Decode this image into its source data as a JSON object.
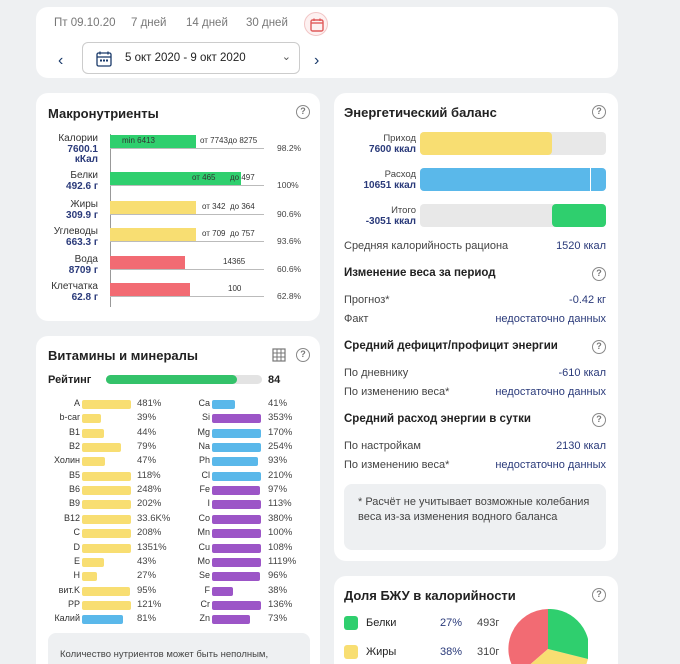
{
  "colors": {
    "green": "#2fcf6e",
    "yellow": "#f8de72",
    "red": "#f26b73",
    "blue": "#5ab8ea",
    "violet": "#9c55c7",
    "navy": "#2a3a7a"
  },
  "top": {
    "ranges": [
      "Пт 09.10.20",
      "7 дней",
      "14 дней",
      "30 дней"
    ],
    "date_range": "5 окт 2020 - 9 окт 2020",
    "prev": "‹",
    "next": "›"
  },
  "macro": {
    "title": "Макронутриенты",
    "rows": [
      {
        "name": "Калории",
        "value": "7600.1",
        "unit": "кКал",
        "pct": "98.2%",
        "ticks": [
          "min 6413",
          "от 7743",
          "до 8275"
        ],
        "fill": 0.56,
        "color": "green"
      },
      {
        "name": "Белки",
        "value": "492.6 г",
        "pct": "100%",
        "ticks": [
          "от 465",
          "до 497"
        ],
        "fill": 0.85,
        "color": "green"
      },
      {
        "name": "Жиры",
        "value": "309.9 г",
        "pct": "90.6%",
        "ticks": [
          "от 342",
          "до 364"
        ],
        "fill": 0.56,
        "color": "yellow"
      },
      {
        "name": "Углеводы",
        "value": "663.3 г",
        "pct": "93.6%",
        "ticks": [
          "от 709",
          "до 757"
        ],
        "fill": 0.56,
        "color": "yellow"
      },
      {
        "name": "Вода",
        "value": "8709 г",
        "pct": "60.6%",
        "ticks": [
          "14365"
        ],
        "fill": 0.49,
        "color": "red"
      },
      {
        "name": "Клетчатка",
        "value": "62.8 г",
        "pct": "62.8%",
        "ticks": [
          "100"
        ],
        "fill": 0.52,
        "color": "red"
      }
    ]
  },
  "vit": {
    "title": "Витамины и минералы",
    "rating_label": "Рейтинг",
    "rating": "84",
    "rating_fraction": 0.84,
    "left": [
      {
        "n": "A",
        "v": "481%",
        "w": 0.9,
        "c": "yellow"
      },
      {
        "n": "b-car",
        "v": "39%",
        "w": 0.35,
        "c": "yellow"
      },
      {
        "n": "B1",
        "v": "44%",
        "w": 0.4,
        "c": "yellow"
      },
      {
        "n": "B2",
        "v": "79%",
        "w": 0.72,
        "c": "yellow"
      },
      {
        "n": "Холин",
        "v": "47%",
        "w": 0.43,
        "c": "yellow"
      },
      {
        "n": "B5",
        "v": "118%",
        "w": 0.9,
        "c": "yellow"
      },
      {
        "n": "B6",
        "v": "248%",
        "w": 0.9,
        "c": "yellow"
      },
      {
        "n": "B9",
        "v": "202%",
        "w": 0.9,
        "c": "yellow"
      },
      {
        "n": "B12",
        "v": "33.6K%",
        "w": 0.9,
        "c": "yellow"
      },
      {
        "n": "C",
        "v": "208%",
        "w": 0.9,
        "c": "yellow"
      },
      {
        "n": "D",
        "v": "1351%",
        "w": 0.9,
        "c": "yellow"
      },
      {
        "n": "E",
        "v": "43%",
        "w": 0.4,
        "c": "yellow"
      },
      {
        "n": "H",
        "v": "27%",
        "w": 0.27,
        "c": "yellow"
      },
      {
        "n": "вит.K",
        "v": "95%",
        "w": 0.88,
        "c": "yellow"
      },
      {
        "n": "PP",
        "v": "121%",
        "w": 0.9,
        "c": "yellow"
      },
      {
        "n": "Калий",
        "v": "81%",
        "w": 0.76,
        "c": "blue"
      }
    ],
    "right": [
      {
        "n": "Ca",
        "v": "41%",
        "w": 0.42,
        "c": "blue"
      },
      {
        "n": "Si",
        "v": "353%",
        "w": 0.9,
        "c": "violet"
      },
      {
        "n": "Mg",
        "v": "170%",
        "w": 0.9,
        "c": "blue"
      },
      {
        "n": "Na",
        "v": "254%",
        "w": 0.9,
        "c": "blue"
      },
      {
        "n": "Ph",
        "v": "93%",
        "w": 0.86,
        "c": "blue"
      },
      {
        "n": "Cl",
        "v": "210%",
        "w": 0.9,
        "c": "blue"
      },
      {
        "n": "Fe",
        "v": "97%",
        "w": 0.88,
        "c": "violet"
      },
      {
        "n": "I",
        "v": "113%",
        "w": 0.9,
        "c": "violet"
      },
      {
        "n": "Co",
        "v": "380%",
        "w": 0.9,
        "c": "violet"
      },
      {
        "n": "Mn",
        "v": "100%",
        "w": 0.9,
        "c": "violet"
      },
      {
        "n": "Cu",
        "v": "108%",
        "w": 0.9,
        "c": "violet"
      },
      {
        "n": "Mo",
        "v": "1119%",
        "w": 0.9,
        "c": "violet"
      },
      {
        "n": "Se",
        "v": "96%",
        "w": 0.88,
        "c": "violet"
      },
      {
        "n": "F",
        "v": "38%",
        "w": 0.38,
        "c": "violet"
      },
      {
        "n": "Cr",
        "v": "136%",
        "w": 0.9,
        "c": "violet"
      },
      {
        "n": "Zn",
        "v": "73%",
        "w": 0.7,
        "c": "violet"
      }
    ],
    "note": "Количество нутриентов может быть неполным,"
  },
  "energy": {
    "title": "Энергетический баланс",
    "bars": [
      {
        "name": "Приход",
        "value": "7600 ккал",
        "fill": 0.71,
        "color": "yellow"
      },
      {
        "name": "Расход",
        "value": "10651 ккал",
        "fill": 1.0,
        "color": "blue"
      },
      {
        "name": "Итого",
        "value": "-3051 ккал",
        "fill": 0.29,
        "color": "green"
      }
    ],
    "avg_label": "Средняя калорийность рациона",
    "avg_value": "1520 ккал",
    "weight_title": "Изменение веса за период",
    "forecast_label": "Прогноз*",
    "forecast_value": "-0.42 кг",
    "fact_label": "Факт",
    "fact_value": "недостаточно данных",
    "deficit_title": "Средний дефицит/профицит энергии",
    "diary_label": "По дневнику",
    "diary_value": "-610 ккал",
    "wchange_label": "По изменению веса*",
    "wchange_value": "недостаточно данных",
    "spend_title": "Средний расход энергии в сутки",
    "settings_label": "По настройкам",
    "settings_value": "2130 ккал",
    "wchange2_label": "По изменению веса*",
    "wchange2_value": "недостаточно данных",
    "disclaimer": "* Расчёт не учитывает возможные колебания веса из-за изменения водного баланса"
  },
  "bju": {
    "title": "Доля БЖУ в калорийности",
    "rows": [
      {
        "name": "Белки",
        "pct": "27%",
        "g": "493г",
        "color": "green"
      },
      {
        "name": "Жиры",
        "pct": "38%",
        "g": "310г",
        "color": "yellow"
      }
    ]
  }
}
